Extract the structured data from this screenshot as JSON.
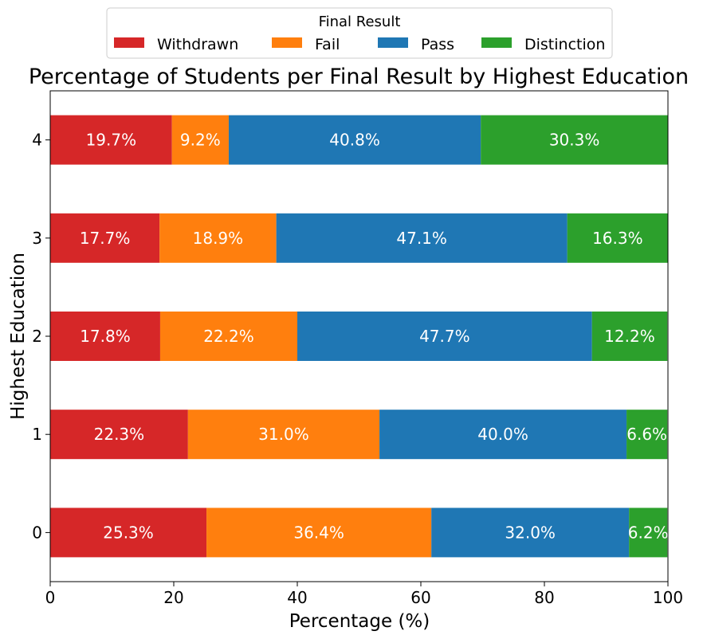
{
  "chart_data": {
    "type": "bar",
    "orientation": "horizontal",
    "stacked": true,
    "title": "Percentage of Students per Final Result by Highest Education",
    "xlabel": "Percentage (%)",
    "ylabel": "Highest Education",
    "xlim": [
      0,
      100
    ],
    "x_ticks": [
      0,
      20,
      40,
      60,
      80,
      100
    ],
    "categories": [
      "0",
      "1",
      "2",
      "3",
      "4"
    ],
    "legend": {
      "title": "Final Result",
      "placement": "top-center"
    },
    "grid": false,
    "series": [
      {
        "name": "Withdrawn",
        "color": "#d62728",
        "values": [
          25.3,
          22.3,
          17.8,
          17.7,
          19.7
        ]
      },
      {
        "name": "Fail",
        "color": "#ff7f0e",
        "values": [
          36.4,
          31.0,
          22.2,
          18.9,
          9.2
        ]
      },
      {
        "name": "Pass",
        "color": "#1f77b4",
        "values": [
          32.0,
          40.0,
          47.7,
          47.1,
          40.8
        ]
      },
      {
        "name": "Distinction",
        "color": "#2ca02c",
        "values": [
          6.2,
          6.6,
          12.2,
          16.3,
          30.3
        ]
      }
    ]
  }
}
